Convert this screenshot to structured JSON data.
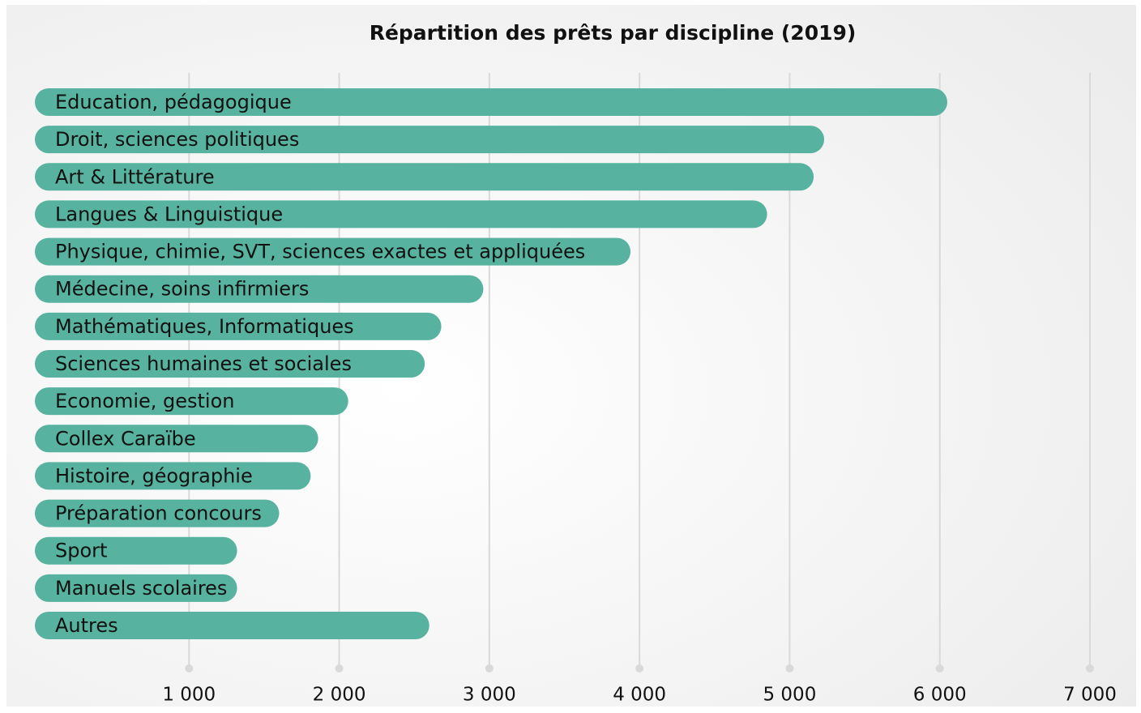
{
  "chart_data": {
    "type": "bar",
    "orientation": "horizontal",
    "title": "Répartition des prêts par discipline (2019)",
    "categories": [
      "Education, pédagogique",
      "Droit, sciences politiques",
      "Art & Littérature",
      "Langues & Linguistique",
      "Physique, chimie, SVT, sciences exactes et appliquées",
      "Médecine, soins infirmiers",
      "Mathématiques, Informatiques",
      "Sciences humaines et sociales",
      "Economie, gestion",
      "Collex Caraïbe",
      "Histoire, géographie",
      "Préparation concours",
      "Sport",
      "Manuels scolaires",
      "Autres"
    ],
    "values": [
      6050,
      5230,
      5160,
      4850,
      3940,
      2960,
      2680,
      2570,
      2060,
      1860,
      1810,
      1600,
      1320,
      1320,
      2600
    ],
    "color": "#57b39f",
    "xlim": [
      0,
      7000
    ],
    "xticks": [
      {
        "value": 1000,
        "label": "1 000"
      },
      {
        "value": 2000,
        "label": "2 000"
      },
      {
        "value": 3000,
        "label": "3 000"
      },
      {
        "value": 4000,
        "label": "4 000"
      },
      {
        "value": 5000,
        "label": "5 000"
      },
      {
        "value": 6000,
        "label": "6 000"
      },
      {
        "value": 7000,
        "label": "7 000"
      }
    ],
    "grid": true
  }
}
